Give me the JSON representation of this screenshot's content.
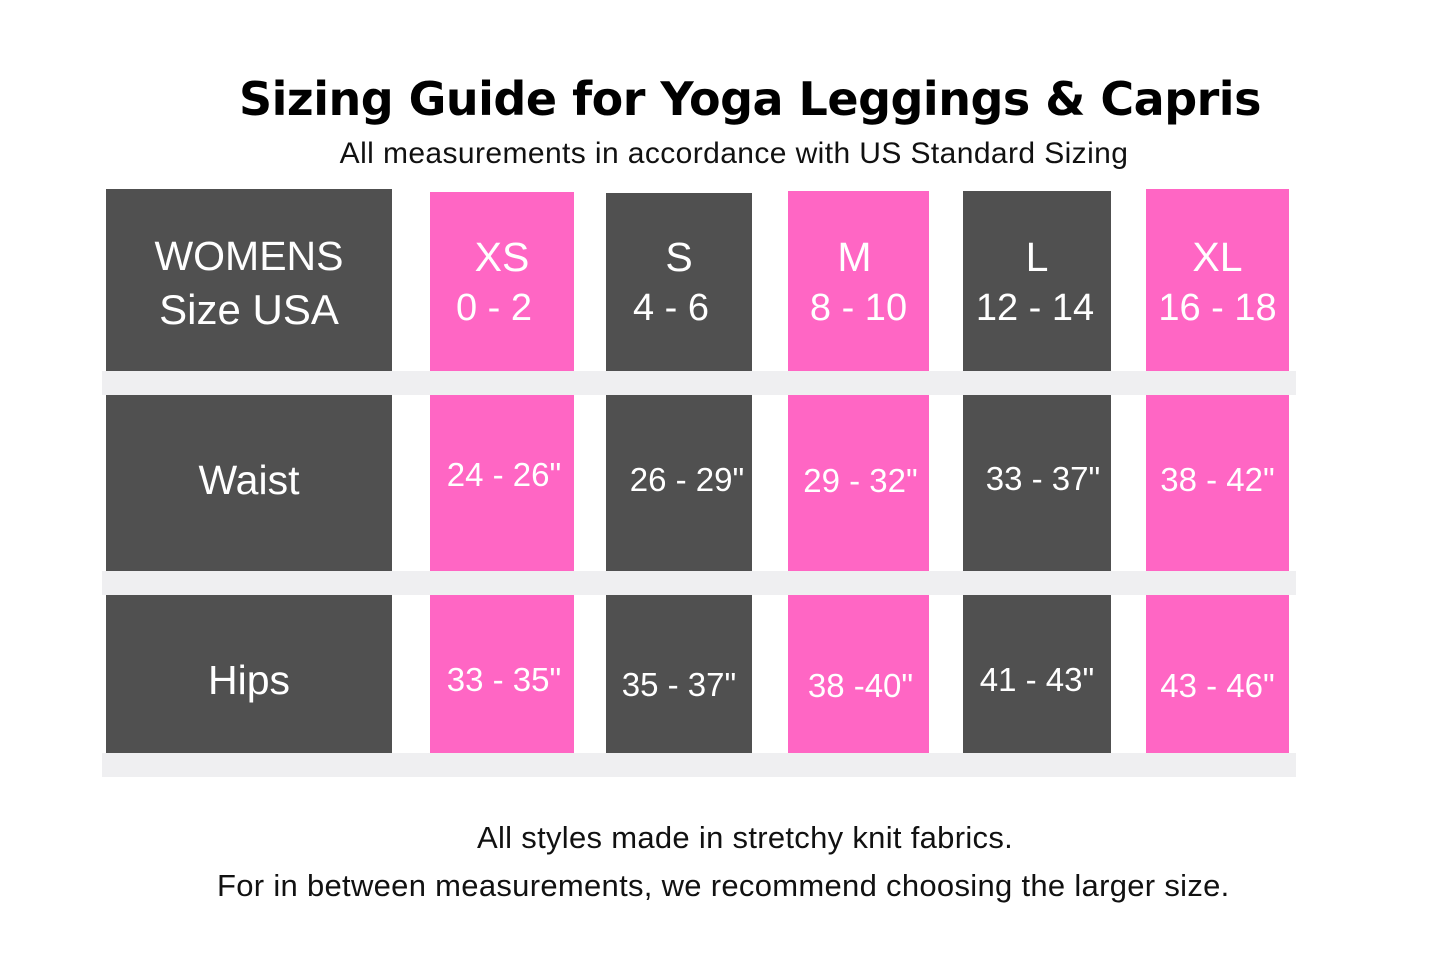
{
  "title": "Sizing Guide for Yoga Leggings & Capris",
  "subtitle": "All measurements in accordance with US Standard Sizing",
  "colors": {
    "dark": "#505050",
    "pink": "#ff66c4",
    "band": "#efeff1",
    "text_on_block": "#ffffff"
  },
  "table": {
    "header_label": [
      "WOMENS",
      "Size USA"
    ],
    "sizes": [
      {
        "letter": "XS",
        "range": "0 - 2"
      },
      {
        "letter": "S",
        "range": "4 - 6"
      },
      {
        "letter": "M",
        "range": "8 - 10"
      },
      {
        "letter": "L",
        "range": "12 - 14"
      },
      {
        "letter": "XL",
        "range": "16 - 18"
      }
    ],
    "rows": [
      {
        "label": "Waist",
        "values": [
          "24 - 26\"",
          "26 - 29\"",
          "29 - 32\"",
          "33 - 37\"",
          "38 - 42\""
        ]
      },
      {
        "label": "Hips",
        "values": [
          "33 - 35\"",
          "35 - 37\"",
          "38 -40\"",
          "41 - 43\"",
          "43 - 46\""
        ]
      }
    ]
  },
  "footer": {
    "line1": "All styles made in stretchy knit fabrics.",
    "line2": "For in between measurements, we recommend choosing the larger size."
  }
}
